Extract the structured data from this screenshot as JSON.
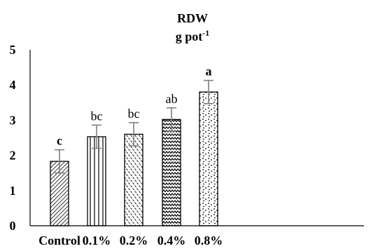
{
  "chart_data": {
    "type": "bar",
    "title": "RDW",
    "subtitle_base": "g pot",
    "subtitle_sup": "-1",
    "categories": [
      "Control",
      "0.1%",
      "0.2%",
      "0.4%",
      "0.8%"
    ],
    "values": [
      1.83,
      2.53,
      2.6,
      3.02,
      3.8
    ],
    "errors": [
      0.33,
      0.33,
      0.33,
      0.33,
      0.33
    ],
    "significance": [
      "c",
      "bc",
      "bc",
      "ab",
      "a"
    ],
    "significance_bold": [
      true,
      false,
      false,
      false,
      true
    ],
    "patterns": [
      "diagonal-dense",
      "vertical-lines",
      "dashed-diagonal",
      "zigzag",
      "dots"
    ],
    "ylim": [
      0,
      5
    ],
    "yticks": [
      "0",
      "1",
      "2",
      "3",
      "4",
      "5"
    ],
    "grid": false,
    "xlabel": "",
    "ylabel": "",
    "colors": {
      "bar_stroke": "#000000",
      "bar_fill": "#ffffff",
      "error_bar": "#7f7f7f",
      "axis": "#000000"
    }
  }
}
